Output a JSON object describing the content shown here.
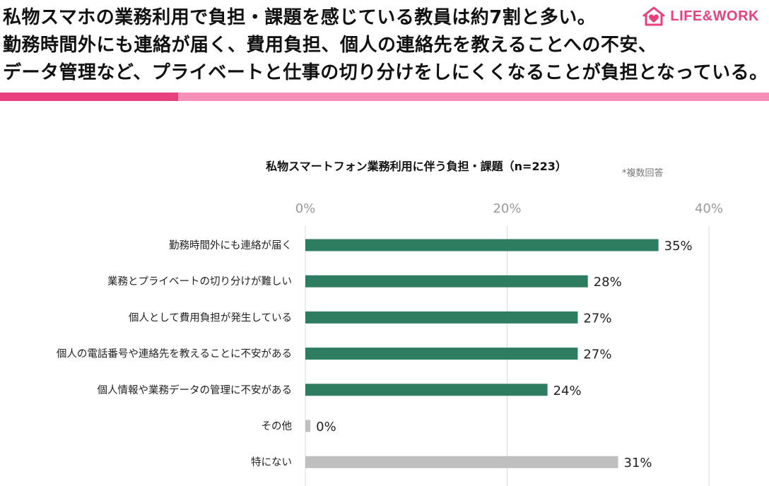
{
  "headline": {
    "lines": [
      "私物スマホの業務利用で負担・課題を感じている教員は約7割と多い。",
      "勤務時間外にも連絡が届く、費用負担、個人の連絡先を教えることへの不安、",
      "データ管理など、プライベートと仕事の切り分けをしにくくなることが負担となっている。"
    ]
  },
  "logo": {
    "text": "LIFE&WORK",
    "icon": "house-heart-icon",
    "color": "#e8417f"
  },
  "colors": {
    "stripe_dark": "#e8417f",
    "stripe_light": "#f590b9",
    "bar_primary": "#2e7d60",
    "bar_other": "#bfbfbf",
    "grid": "#d9d9d9"
  },
  "chart_note": "*複数回答",
  "chart_data": {
    "type": "bar",
    "orientation": "horizontal",
    "title": "私物スマートフォン業務利用に伴う負担・課題（n=223）",
    "xlim": [
      0,
      40
    ],
    "ticks": [
      0,
      20,
      40
    ],
    "tick_labels": [
      "0%",
      "20%",
      "40%"
    ],
    "grid": true,
    "categories": [
      "勤務時間外にも連絡が届く",
      "業務とプライベートの切り分けが難しい",
      "個人として費用負担が発生している",
      "個人の電話番号や連絡先を教えることに不安がある",
      "個人情報や業務データの管理に不安がある",
      "その他",
      "特にない"
    ],
    "values": [
      35,
      28,
      27,
      27,
      24,
      0.5,
      31
    ],
    "value_labels": [
      "35%",
      "28%",
      "27%",
      "27%",
      "24%",
      "0%",
      "31%"
    ],
    "bar_colors": [
      "#2e7d60",
      "#2e7d60",
      "#2e7d60",
      "#2e7d60",
      "#2e7d60",
      "#bfbfbf",
      "#bfbfbf"
    ]
  }
}
